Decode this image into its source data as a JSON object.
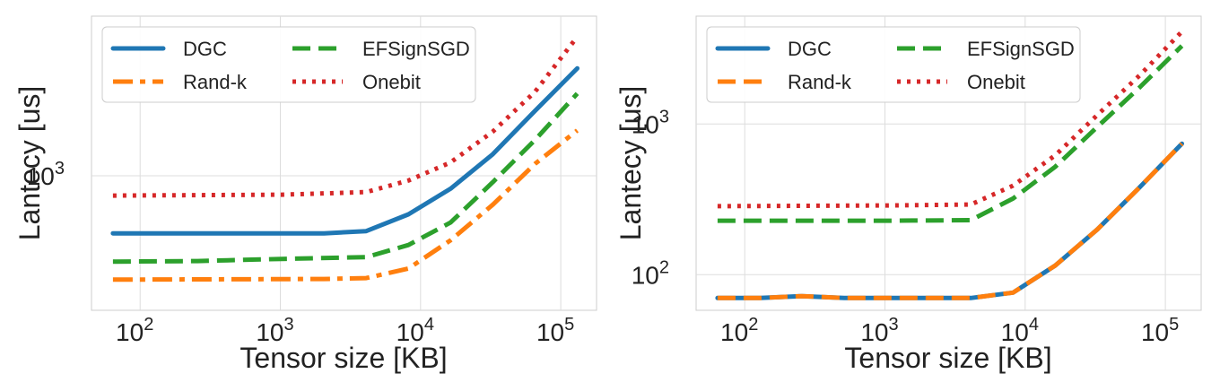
{
  "chart_data": [
    {
      "type": "line",
      "x_scale": "log",
      "y_scale": "log",
      "xlabel": "Tensor size [KB]",
      "ylabel": "Lantecy [us]",
      "xlim": [
        45,
        180000
      ],
      "ylim": [
        420,
        2800
      ],
      "x_ticks": [
        {
          "base": "10",
          "exp": "2",
          "value": 100
        },
        {
          "base": "10",
          "exp": "3",
          "value": 1000
        },
        {
          "base": "10",
          "exp": "4",
          "value": 10000
        },
        {
          "base": "10",
          "exp": "5",
          "value": 100000
        }
      ],
      "y_ticks": [
        {
          "base": "10",
          "exp": "3",
          "value": 1000
        }
      ],
      "grid": true,
      "legend": {
        "placement": "top-left",
        "columns": 2
      },
      "series": [
        {
          "name": "DGC",
          "color": "#1f77b4",
          "style": "solid",
          "points": [
            [
              64,
              690
            ],
            [
              2048,
              690
            ],
            [
              4096,
              700
            ],
            [
              8192,
              780
            ],
            [
              16384,
              920
            ],
            [
              32768,
              1150
            ],
            [
              65536,
              1520
            ],
            [
              131072,
              2000
            ]
          ]
        },
        {
          "name": "Rand-k",
          "color": "#ff7f0e",
          "style": "dashdot",
          "points": [
            [
              64,
              512
            ],
            [
              2048,
              514
            ],
            [
              4096,
              517
            ],
            [
              8192,
              550
            ],
            [
              16384,
              660
            ],
            [
              32768,
              830
            ],
            [
              65536,
              1080
            ],
            [
              131072,
              1340
            ]
          ]
        },
        {
          "name": "EFSignSGD",
          "color": "#2ca02c",
          "style": "dashed",
          "points": [
            [
              64,
              575
            ],
            [
              256,
              577
            ],
            [
              1024,
              585
            ],
            [
              4096,
              592
            ],
            [
              8192,
              640
            ],
            [
              16384,
              740
            ],
            [
              32768,
              960
            ],
            [
              65536,
              1260
            ],
            [
              131072,
              1700
            ]
          ]
        },
        {
          "name": "Onebit",
          "color": "#d62728",
          "style": "dotted",
          "points": [
            [
              64,
              880
            ],
            [
              1024,
              885
            ],
            [
              4096,
              900
            ],
            [
              8192,
              970
            ],
            [
              16384,
              1090
            ],
            [
              32768,
              1330
            ],
            [
              65536,
              1720
            ],
            [
              131072,
              2450
            ]
          ]
        }
      ]
    },
    {
      "type": "line",
      "x_scale": "log",
      "y_scale": "log",
      "xlabel": "Tensor size [KB]",
      "ylabel": "Lantecy [us]",
      "xlim": [
        45,
        180000
      ],
      "ylim": [
        58,
        5200
      ],
      "x_ticks": [
        {
          "base": "10",
          "exp": "2",
          "value": 100
        },
        {
          "base": "10",
          "exp": "3",
          "value": 1000
        },
        {
          "base": "10",
          "exp": "4",
          "value": 10000
        },
        {
          "base": "10",
          "exp": "5",
          "value": 100000
        }
      ],
      "y_ticks": [
        {
          "base": "10",
          "exp": "2",
          "value": 100
        },
        {
          "base": "10",
          "exp": "3",
          "value": 1000
        }
      ],
      "grid": true,
      "legend": {
        "placement": "top-left",
        "columns": 2
      },
      "series": [
        {
          "name": "DGC",
          "color": "#1f77b4",
          "style": "solid",
          "points": [
            [
              64,
              70
            ],
            [
              128,
              70
            ],
            [
              256,
              72
            ],
            [
              512,
              70
            ],
            [
              1024,
              70
            ],
            [
              2048,
              70
            ],
            [
              4096,
              70
            ],
            [
              8192,
              76
            ],
            [
              16384,
              115
            ],
            [
              32768,
              200
            ],
            [
              65536,
              380
            ],
            [
              131072,
              740
            ]
          ]
        },
        {
          "name": "Rand-k",
          "color": "#ff7f0e",
          "style": "dashed",
          "points": [
            [
              64,
              70
            ],
            [
              128,
              70
            ],
            [
              256,
              72
            ],
            [
              512,
              70
            ],
            [
              1024,
              70
            ],
            [
              2048,
              70
            ],
            [
              4096,
              70
            ],
            [
              8192,
              76
            ],
            [
              16384,
              115
            ],
            [
              32768,
              200
            ],
            [
              65536,
              380
            ],
            [
              131072,
              740
            ]
          ]
        },
        {
          "name": "EFSignSGD",
          "color": "#2ca02c",
          "style": "dashed",
          "points": [
            [
              64,
              228
            ],
            [
              1024,
              228
            ],
            [
              4096,
              230
            ],
            [
              8192,
              320
            ],
            [
              16384,
              520
            ],
            [
              32768,
              960
            ],
            [
              65536,
              1750
            ],
            [
              131072,
              3300
            ]
          ]
        },
        {
          "name": "Onebit",
          "color": "#d62728",
          "style": "dotted",
          "points": [
            [
              64,
              285
            ],
            [
              1024,
              288
            ],
            [
              4096,
              292
            ],
            [
              8192,
              390
            ],
            [
              16384,
              620
            ],
            [
              32768,
              1150
            ],
            [
              65536,
              2100
            ],
            [
              131072,
              4100
            ]
          ]
        }
      ]
    }
  ]
}
